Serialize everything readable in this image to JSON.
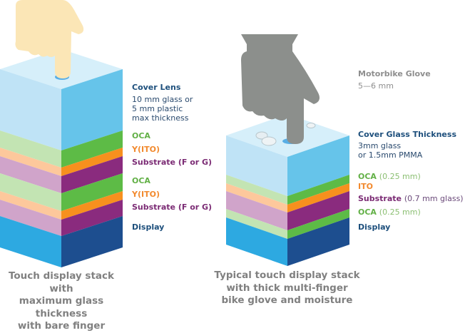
{
  "left_stack": {
    "labels": {
      "cover_title": "Cover Lens",
      "cover_detail": [
        "10 mm glass or",
        "5 mm plastic",
        "max thickness"
      ],
      "oca1": "OCA",
      "ito1": "Y(ITO)",
      "substrate1": "Substrate (F or G)",
      "oca2": "OCA",
      "ito2": "Y(ITO)",
      "substrate2": "Substrate (F or G)",
      "display": "Display"
    },
    "caption": [
      "Touch display stack with",
      "maximum glass thickness",
      "with bare finger"
    ]
  },
  "right_stack": {
    "glove_title": "Motorbike Glove",
    "glove_detail": "5—6 mm",
    "labels": {
      "cover_title": "Cover Glass Thickness",
      "cover_detail": [
        "3mm glass",
        "or 1.5mm PMMA"
      ],
      "oca1": "OCA",
      "oca1_note": "(0.25 mm)",
      "ito": "ITO",
      "substrate": "Substrate",
      "substrate_note": "(0.7 mm glass)",
      "oca2": "OCA",
      "oca2_note": "(0.25 mm)",
      "display": "Display"
    },
    "caption": [
      "Typical touch display stack",
      "with thick multi-finger",
      "bike glove and moisture"
    ]
  },
  "colors": {
    "cover": [
      "#bfe3f6",
      "#66c4ea",
      "#d6effa"
    ],
    "oca": [
      "#c3e4b3",
      "#5dbb46"
    ],
    "ito": [
      "#fdc89c",
      "#f7901e"
    ],
    "substrate": [
      "#d0a4ca",
      "#8a2b7e"
    ],
    "display": [
      "#2da9e1",
      "#1d4e8f"
    ],
    "skin": "#fbe6b6",
    "glove": "#8c8f8c"
  }
}
